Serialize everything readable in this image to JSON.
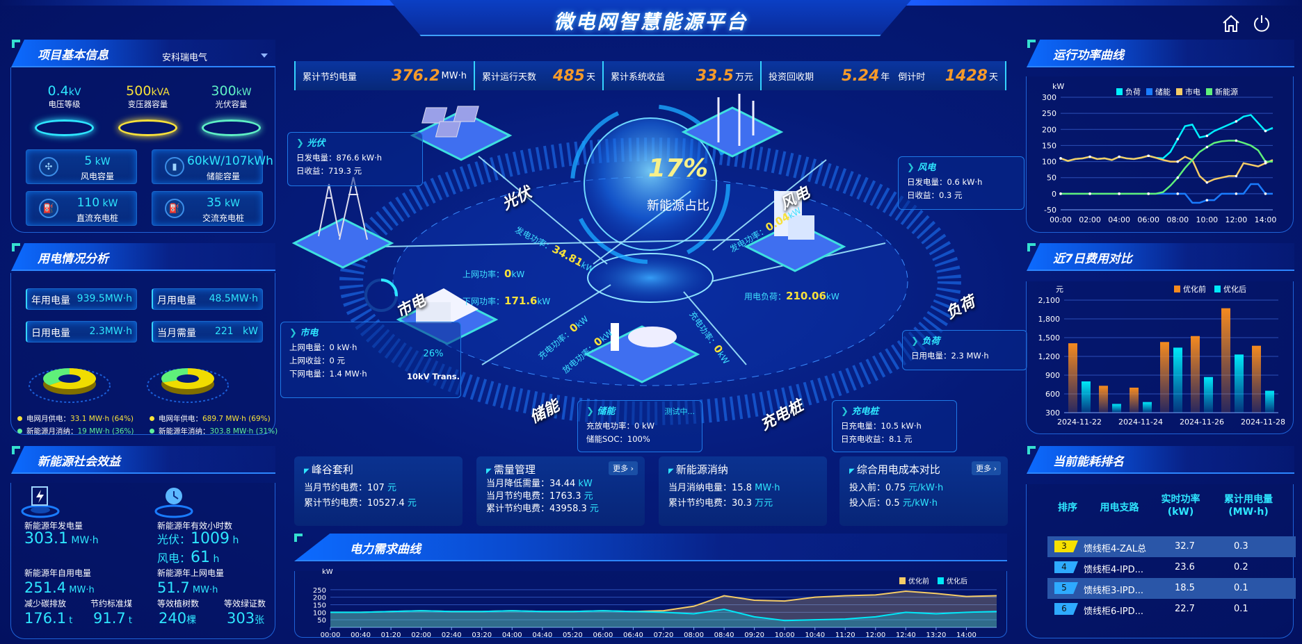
{
  "header": {
    "title": "微电网智慧能源平台",
    "home_icon": "home-icon",
    "power_icon": "power-icon"
  },
  "project": {
    "title": "项目基本信息",
    "company": "安科瑞电气",
    "gauges": [
      {
        "value": "0.4",
        "unit": "kV",
        "label": "电压等级",
        "color": "#2ee6ff"
      },
      {
        "value": "500",
        "unit": "kVA",
        "label": "变压器容量",
        "color": "#f7e13a"
      },
      {
        "value": "300",
        "unit": "kW",
        "label": "光伏容量",
        "color": "#5ff0c5"
      }
    ],
    "cards": [
      {
        "value": "5",
        "unit": " kW",
        "label": "风电容量",
        "icon": "wind-turbine-icon"
      },
      {
        "value": "60kW/107kWh",
        "unit": "",
        "label": "储能容量",
        "icon": "battery-icon"
      },
      {
        "value": "110",
        "unit": " kW",
        "label": "直流充电桩",
        "icon": "charger-icon"
      },
      {
        "value": "35",
        "unit": " kW",
        "label": "交流充电桩",
        "icon": "charger-icon"
      }
    ]
  },
  "usage": {
    "title": "用电情况分析",
    "stats": [
      {
        "label": "年用电量",
        "value": "939.5MW·h"
      },
      {
        "label": "月用电量",
        "value": "48.5MW·h"
      },
      {
        "label": "日用电量",
        "value": "2.3MW·h"
      },
      {
        "label": "当月需量",
        "value": "221   kW"
      }
    ],
    "donuts": [
      {
        "grid_pct": 64,
        "new_pct": 36
      },
      {
        "grid_pct": 69,
        "new_pct": 31
      }
    ],
    "legend": [
      {
        "label": "电网月供电：",
        "value": "33.1 MW·h (64%)",
        "color": "#f7e13a"
      },
      {
        "label": "电网年供电：",
        "value": "689.7 MW·h (69%)",
        "color": "#f7e13a"
      },
      {
        "label": "新能源月消纳：",
        "value": "19 MW·h (36%)",
        "color": "#5ff09a"
      },
      {
        "label": "新能源年消纳：",
        "value": "303.8 MW·h (31%)",
        "color": "#5ff09a"
      }
    ]
  },
  "social": {
    "title": "新能源社会效益",
    "gen_label": "新能源年发电量",
    "gen_value": "303.1",
    "gen_unit": " MW·h",
    "hours_label": "新能源年有效小时数",
    "pv_label": "光伏：",
    "pv_value": "1009",
    "pv_unit": " h",
    "wind_label": "风电：",
    "wind_value": "61",
    "wind_unit": " h",
    "self_label": "新能源年自用电量",
    "self_value": "251.4",
    "self_unit": " MW·h",
    "carbon_label": "减少碳排放",
    "carbon_value": "176.1",
    "carbon_unit": " t",
    "coal_label": "节约标准煤",
    "coal_value": "91.7",
    "coal_unit": " t",
    "grid_label": "新能源年上网电量",
    "grid_value": "51.7",
    "grid_unit": " MW·h",
    "tree_label": "等效植树数",
    "tree_value": "240",
    "tree_unit": "棵",
    "cert_label": "等效绿证数",
    "cert_value": "303",
    "cert_unit": "张"
  },
  "stats": [
    {
      "label": "累计节约电量",
      "value": "376.2",
      "unit": "MW·h"
    },
    {
      "label": "累计运行天数",
      "value": "485",
      "unit": "天"
    },
    {
      "label": "累计系统收益",
      "value": "33.5",
      "unit": "万元"
    },
    {
      "label": "投资回收期",
      "value": "5.24",
      "unit": "年"
    },
    {
      "label": "倒计时",
      "value": "1428",
      "unit": "天"
    }
  ],
  "center": {
    "ratio": "17%",
    "ratio_label": "新能源占比",
    "platforms": {
      "pv": "光伏",
      "wind": "风电",
      "grid": "市电",
      "load": "负荷",
      "storage": "储能",
      "charger": "充电桩"
    },
    "flows": {
      "pv_label": "发电功率：",
      "pv_value": "34.81",
      "wind_label": "发电功率：",
      "wind_value": "0.04",
      "up_label": "上网功率：",
      "up_value": "0",
      "down_label": "下网功率：",
      "down_value": "171.6",
      "load_label": "用电负荷：",
      "load_value": "210.06",
      "charge_label": "充电功率：",
      "charge_value": "0",
      "discharge_label": "放电功率：",
      "discharge_value": "0",
      "ev_label": "充电功率：",
      "ev_value": "0",
      "unit": "kW"
    },
    "pv_info": {
      "title": "光伏",
      "l1": "日发电量：876.6 kW·h",
      "l2": "日收益：719.3 元"
    },
    "wind_info": {
      "title": "风电",
      "l1": "日发电量：0.6 kW·h",
      "l2": "日收益：0.3 元"
    },
    "grid_info": {
      "title": "市电",
      "l1": "上网电量：0 kW·h",
      "l2": "上网收益：0 元",
      "l3": "下网电量：1.4 MW·h",
      "trans_pct": "26%",
      "trans_pct_value": 26,
      "trans_label": "10kV Trans."
    },
    "load_info": {
      "title": "负荷",
      "l1": "日用电量：2.3 MW·h"
    },
    "storage_info": {
      "title": "储能",
      "status": "测试中...",
      "l1": "充放电功率：0 kW",
      "l2": "储能SOC：100%"
    },
    "charger_info": {
      "title": "充电桩",
      "l1": "日充电量：10.5 kW·h",
      "l2": "日充电收益：8.1 元"
    }
  },
  "bottom_cards": [
    {
      "title": "峰谷套利",
      "rows": [
        {
          "label": "当月节约电费：",
          "value": "107",
          "unit": " 元"
        },
        {
          "label": "累计节约电费：",
          "value": "10527.4",
          "unit": " 元"
        }
      ]
    },
    {
      "title": "需量管理",
      "more": "更多 ›",
      "rows": [
        {
          "label": "当月降低需量：",
          "value": "34.44",
          "unit": " kW"
        },
        {
          "label": "当月节约电费：",
          "value": "1763.3",
          "unit": " 元"
        },
        {
          "label": "累计节约电费：",
          "value": "43958.3",
          "unit": " 元"
        }
      ]
    },
    {
      "title": "新能源消纳",
      "rows": [
        {
          "label": "当月消纳电量：",
          "value": "15.8",
          "unit": " MW·h"
        },
        {
          "label": "累计节约电费：",
          "value": "30.3",
          "unit": " 万元"
        }
      ]
    },
    {
      "title": "综合用电成本对比",
      "more": "更多 ›",
      "rows": [
        {
          "label": "投入前：",
          "value": "0.75",
          "unit": " 元/kW·h"
        },
        {
          "label": "投入后：",
          "value": "0.5",
          "unit": " 元/kW·h"
        }
      ]
    }
  ],
  "ranking": {
    "title": "当前能耗排名",
    "headers": [
      "排序",
      "用电支路",
      "实时功率\n(kW)",
      "累计用电量\n(MW·h)"
    ],
    "rows": [
      {
        "rank": "3",
        "name": "馈线柜4-ZAL总",
        "power": "32.7",
        "energy": "0.3",
        "color": "#f7e100"
      },
      {
        "rank": "4",
        "name": "馈线柜4-IPD...",
        "power": "23.6",
        "energy": "0.2",
        "color": "#2eaaff"
      },
      {
        "rank": "5",
        "name": "馈线柜3-IPD...",
        "power": "18.5",
        "energy": "0.1",
        "color": "#2eaaff"
      },
      {
        "rank": "6",
        "name": "馈线柜6-IPD...",
        "power": "22.7",
        "energy": "0.1",
        "color": "#2eaaff"
      }
    ]
  },
  "chart_data": [
    {
      "id": "power",
      "panel_title": "运行功率曲线",
      "type": "line",
      "ylabel": "kW",
      "ylim": [
        -50,
        300
      ],
      "yticks": [
        -50,
        0,
        50,
        100,
        150,
        200,
        250,
        300
      ],
      "xticks": [
        "00:00",
        "02:00",
        "04:00",
        "06:00",
        "08:00",
        "10:00",
        "12:00",
        "14:00"
      ],
      "grid": true,
      "legend": "top-right",
      "x": [
        "00:00",
        "00:30",
        "01:00",
        "01:30",
        "02:00",
        "02:30",
        "03:00",
        "03:30",
        "04:00",
        "04:30",
        "05:00",
        "05:30",
        "06:00",
        "06:30",
        "07:00",
        "07:30",
        "08:00",
        "08:30",
        "09:00",
        "09:30",
        "10:00",
        "10:30",
        "11:00",
        "11:30",
        "12:00",
        "12:30",
        "13:00",
        "13:30",
        "14:00",
        "14:30"
      ],
      "series": [
        {
          "name": "负荷",
          "color": "#00f0ff",
          "values": [
            110,
            102,
            108,
            110,
            115,
            108,
            110,
            105,
            115,
            110,
            108,
            112,
            118,
            112,
            110,
            130,
            170,
            210,
            215,
            175,
            180,
            195,
            205,
            215,
            225,
            240,
            245,
            220,
            195,
            205
          ]
        },
        {
          "name": "储能",
          "color": "#1a7cff",
          "values": [
            0,
            0,
            0,
            0,
            0,
            0,
            0,
            0,
            0,
            0,
            0,
            0,
            0,
            0,
            0,
            0,
            0,
            0,
            -28,
            -28,
            -20,
            -20,
            0,
            0,
            0,
            0,
            30,
            30,
            0,
            0
          ]
        },
        {
          "name": "市电",
          "color": "#f5cc66",
          "values": [
            110,
            102,
            108,
            110,
            115,
            108,
            110,
            105,
            115,
            110,
            108,
            112,
            118,
            112,
            105,
            100,
            100,
            115,
            105,
            55,
            35,
            45,
            50,
            55,
            55,
            95,
            90,
            85,
            95,
            105
          ]
        },
        {
          "name": "新能源",
          "color": "#5ff07a",
          "values": [
            0,
            0,
            0,
            0,
            0,
            0,
            0,
            0,
            0,
            0,
            0,
            0,
            0,
            0,
            5,
            25,
            50,
            80,
            105,
            130,
            145,
            158,
            163,
            165,
            165,
            158,
            150,
            135,
            100,
            100
          ]
        }
      ]
    },
    {
      "id": "cost",
      "panel_title": "近7日费用对比",
      "type": "bar",
      "ylabel": "元",
      "ylim": [
        300,
        2100
      ],
      "yticks": [
        300,
        600,
        900,
        1200,
        1500,
        1800,
        2100
      ],
      "ytick_labels": [
        "300",
        "600",
        "900",
        "1,200",
        "1,500",
        "1,800",
        "2,100"
      ],
      "grid": true,
      "legend": "top-right",
      "categories": [
        "2024-11-22",
        "2024-11-23",
        "2024-11-24",
        "2024-11-25",
        "2024-11-26",
        "2024-11-27",
        "2024-11-28"
      ],
      "xticks": [
        "2024-11-22",
        "2024-11-24",
        "2024-11-26",
        "2024-11-28"
      ],
      "series": [
        {
          "name": "优化前",
          "color": "#f58a1f",
          "values": [
            1410,
            730,
            700,
            1430,
            1525,
            1970,
            1370
          ]
        },
        {
          "name": "优化后",
          "color": "#00e8f8",
          "values": [
            800,
            440,
            470,
            1340,
            870,
            1230,
            650
          ]
        }
      ]
    },
    {
      "id": "demand",
      "panel_title": "电力需求曲线",
      "type": "area",
      "ylabel": "kW",
      "ylim": [
        0,
        300
      ],
      "yticks": [
        50,
        100,
        150,
        200,
        250
      ],
      "grid": true,
      "legend": "top-right",
      "x": [
        "00:00",
        "00:40",
        "01:20",
        "02:00",
        "02:40",
        "03:20",
        "04:00",
        "04:40",
        "05:20",
        "06:00",
        "06:40",
        "07:20",
        "08:00",
        "08:40",
        "09:20",
        "10:00",
        "10:40",
        "11:20",
        "12:00",
        "12:40",
        "13:20",
        "14:00",
        "14:40"
      ],
      "xticks": [
        "00:00",
        "00:40",
        "01:20",
        "02:00",
        "02:40",
        "03:20",
        "04:00",
        "04:40",
        "05:20",
        "06:00",
        "06:40",
        "07:20",
        "08:00",
        "08:40",
        "09:20",
        "10:00",
        "10:40",
        "11:20",
        "12:00",
        "12:40",
        "13:20",
        "14:00"
      ],
      "series": [
        {
          "name": "优化前",
          "color": "#f5cc66",
          "values": [
            100,
            100,
            105,
            110,
            105,
            105,
            110,
            105,
            105,
            110,
            105,
            110,
            140,
            210,
            180,
            175,
            200,
            210,
            215,
            240,
            225,
            205,
            210
          ]
        },
        {
          "name": "优化后",
          "color": "#00e8f8",
          "values": [
            100,
            100,
            105,
            110,
            105,
            105,
            110,
            105,
            105,
            110,
            105,
            100,
            90,
            120,
            70,
            45,
            50,
            55,
            70,
            100,
            90,
            100,
            105
          ]
        }
      ]
    }
  ]
}
